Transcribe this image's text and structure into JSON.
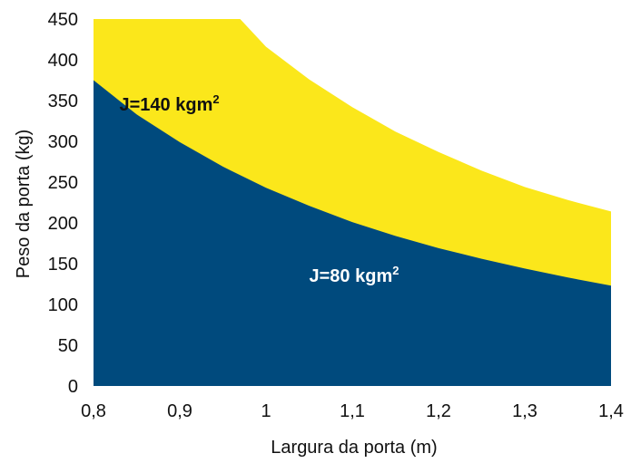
{
  "chart_data": {
    "type": "area",
    "title": "",
    "xlabel": "Largura da porta (m)",
    "ylabel": "Peso da porta (kg)",
    "xlim": [
      0.8,
      1.4
    ],
    "ylim": [
      0,
      450
    ],
    "x_ticks": [
      "0,8",
      "0,9",
      "1",
      "1,1",
      "1,2",
      "1,3",
      "1,4"
    ],
    "x_tick_values": [
      0.8,
      0.9,
      1.0,
      1.1,
      1.2,
      1.3,
      1.4
    ],
    "y_ticks": [
      "0",
      "50",
      "100",
      "150",
      "200",
      "250",
      "300",
      "350",
      "400",
      "450"
    ],
    "y_tick_values": [
      0,
      50,
      100,
      150,
      200,
      250,
      300,
      350,
      400,
      450
    ],
    "grid": false,
    "legend": "none",
    "series": [
      {
        "name": "J=140 kgm²",
        "color": "#FBE71B",
        "x": [
          0.8,
          0.85,
          0.9,
          0.95,
          0.97,
          1.0,
          1.05,
          1.1,
          1.15,
          1.2,
          1.25,
          1.3,
          1.35,
          1.4
        ],
        "y": [
          450,
          450,
          450,
          450,
          450,
          416,
          376,
          342,
          312,
          287,
          264,
          244,
          228,
          214
        ]
      },
      {
        "name": "J=80 kgm²",
        "color": "#004A7D",
        "x": [
          0.8,
          0.85,
          0.9,
          0.95,
          1.0,
          1.05,
          1.1,
          1.15,
          1.2,
          1.25,
          1.3,
          1.35,
          1.4
        ],
        "y": [
          375,
          333,
          299,
          269,
          243,
          221,
          201,
          184,
          169,
          156,
          144,
          133,
          123
        ]
      }
    ],
    "annotations": [
      {
        "text": "J=140 kgm²",
        "x": 0.83,
        "y": 338,
        "color": "#111111"
      },
      {
        "text": "J=80 kgm²",
        "x": 1.05,
        "y": 128,
        "color": "#ffffff"
      }
    ]
  }
}
